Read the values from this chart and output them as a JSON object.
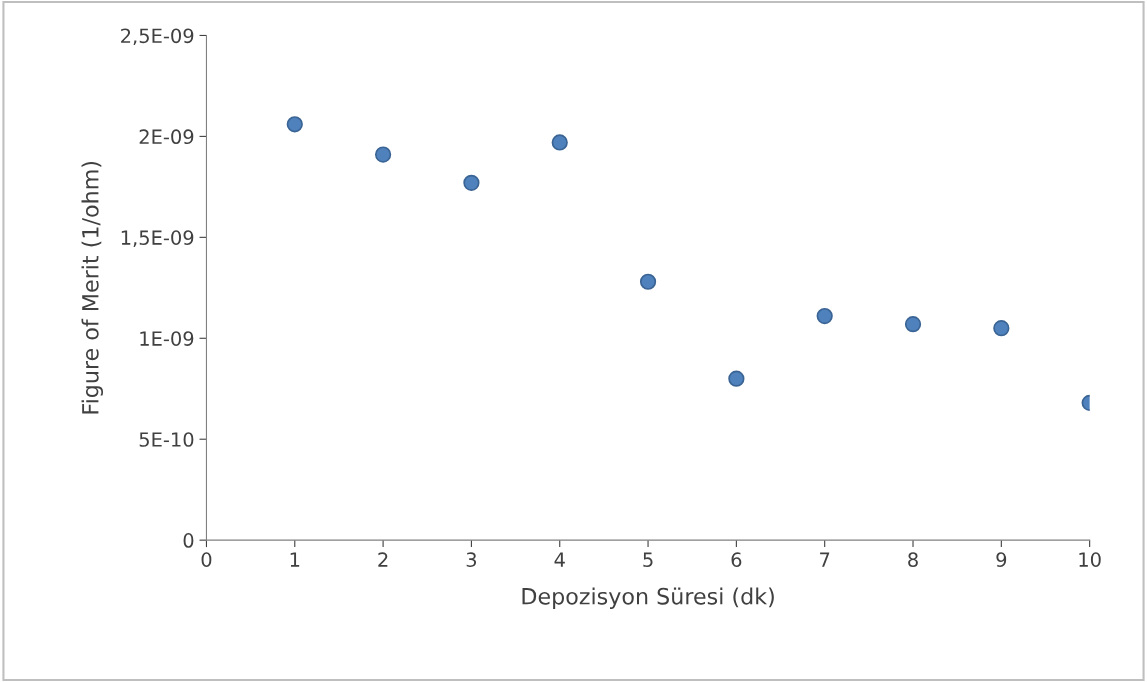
{
  "chart_data": {
    "type": "scatter",
    "xlabel": "Depozisyon Süresi (dk)",
    "ylabel": "Figure of Merit (1/ohm)",
    "x": [
      1,
      2,
      3,
      4,
      5,
      6,
      7,
      8,
      9,
      10
    ],
    "series": [
      {
        "color": "#4f81bd",
        "values": [
          2.06e-09,
          1.91e-09,
          1.77e-09,
          1.97e-09,
          1.28e-09,
          8e-10,
          1.11e-09,
          1.07e-09,
          1.05e-09,
          6.8e-10
        ]
      }
    ],
    "xlim": [
      0,
      10
    ],
    "xticks": [
      0,
      1,
      2,
      3,
      4,
      5,
      6,
      7,
      8,
      9,
      10
    ],
    "ylim": [
      0,
      2.5e-09
    ],
    "yticks": [
      {
        "value": 0,
        "label": "0"
      },
      {
        "value": 5e-10,
        "label": "5E-10"
      },
      {
        "value": 1e-09,
        "label": "1E-09"
      },
      {
        "value": 1.5e-09,
        "label": "1,5E-09"
      },
      {
        "value": 2e-09,
        "label": "2E-09"
      },
      {
        "value": 2.5e-09,
        "label": "2,5E-09"
      }
    ],
    "grid": false,
    "legend": false,
    "marker": "circle"
  }
}
